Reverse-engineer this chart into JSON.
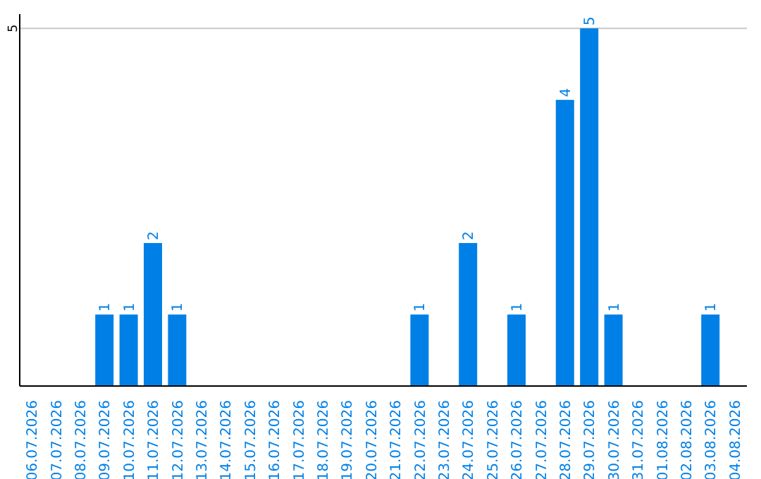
{
  "chart_data": {
    "type": "bar",
    "categories": [
      "06.07.2026",
      "07.07.2026",
      "08.07.2026",
      "09.07.2026",
      "10.07.2026",
      "11.07.2026",
      "12.07.2026",
      "13.07.2026",
      "14.07.2026",
      "15.07.2026",
      "16.07.2026",
      "17.07.2026",
      "18.07.2026",
      "19.07.2026",
      "20.07.2026",
      "21.07.2026",
      "22.07.2026",
      "23.07.2026",
      "24.07.2026",
      "25.07.2026",
      "26.07.2026",
      "27.07.2026",
      "28.07.2026",
      "29.07.2026",
      "30.07.2026",
      "31.07.2026",
      "01.08.2026",
      "02.08.2026",
      "03.08.2026",
      "04.08.2026"
    ],
    "values": [
      0,
      0,
      0,
      1,
      1,
      2,
      1,
      0,
      0,
      0,
      0,
      0,
      0,
      0,
      0,
      0,
      1,
      0,
      2,
      0,
      1,
      0,
      4,
      5,
      1,
      0,
      0,
      0,
      1,
      0
    ],
    "value_labels": [
      null,
      null,
      null,
      "1",
      "1",
      "2",
      "1",
      null,
      null,
      null,
      null,
      null,
      null,
      null,
      null,
      null,
      "1",
      null,
      "2",
      null,
      "1",
      null,
      "4",
      "5",
      "1",
      null,
      null,
      null,
      "1",
      null
    ],
    "color": "#0080e6",
    "ylim": [
      0,
      5.2
    ],
    "yticks": [
      5
    ],
    "grid": "y",
    "legend": false
  }
}
